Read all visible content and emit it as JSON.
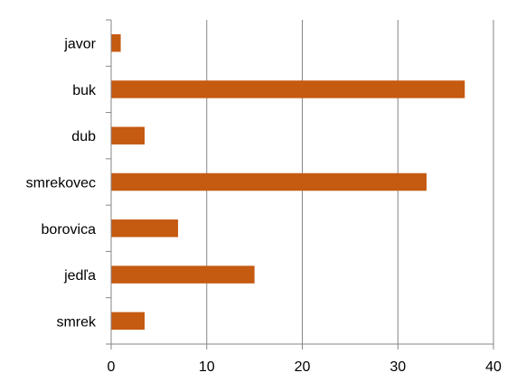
{
  "chart_data": {
    "type": "bar",
    "orientation": "horizontal",
    "categories": [
      "javor",
      "buk",
      "dub",
      "smrekovec",
      "borovica",
      "jedľa",
      "smrek"
    ],
    "values": [
      1,
      37,
      3.5,
      33,
      7,
      15,
      3.5
    ],
    "xlim": [
      0,
      40
    ],
    "x_ticks": [
      "0",
      "10",
      "20",
      "30",
      "40"
    ],
    "grid": "vertical",
    "legend": "none",
    "title": "",
    "xlabel": "",
    "ylabel": "",
    "colors": {
      "bar": "#c55a11",
      "grid": "#868686",
      "axis": "#868686"
    }
  }
}
